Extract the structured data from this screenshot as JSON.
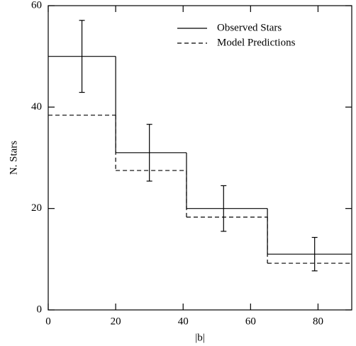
{
  "chart_data": {
    "type": "histogram",
    "xlabel": "|b|",
    "ylabel": "N. Stars",
    "bins": [
      0,
      20,
      41,
      65,
      90
    ],
    "series": [
      {
        "name": "Observed Stars",
        "color": "#000000",
        "dash": "solid",
        "values": [
          50,
          31,
          20,
          11
        ],
        "errors": [
          7.1,
          5.6,
          4.5,
          3.3
        ],
        "error_x": [
          10,
          30,
          52,
          79
        ]
      },
      {
        "name": "Model Predictions",
        "color": "#000000",
        "dash": "dashed",
        "values": [
          38.4,
          27.5,
          18.3,
          9.2
        ]
      }
    ],
    "xlim": [
      0,
      90
    ],
    "ylim": [
      0,
      60
    ],
    "xticks": [
      0,
      20,
      40,
      60,
      80
    ],
    "yticks": [
      0,
      20,
      40,
      60
    ],
    "legend": "upper-right"
  }
}
